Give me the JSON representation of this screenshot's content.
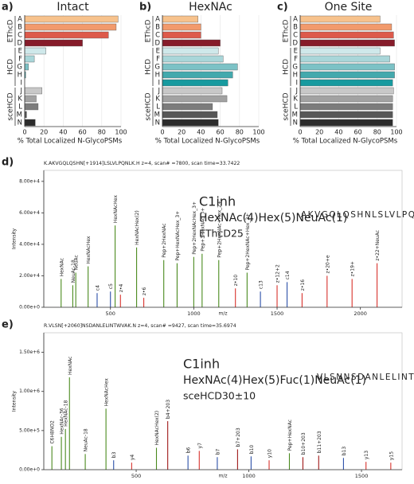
{
  "chart_data": [
    {
      "type": "barh",
      "panel": "a)",
      "title": "Intact",
      "xlabel": "% Total Localized N-GlycoPSMs",
      "xlim": [
        0,
        100
      ],
      "xticks": [
        0,
        20,
        40,
        60,
        80,
        100
      ],
      "groups": [
        {
          "name": "EThcD",
          "categories": [
            "A",
            "B",
            "C",
            "D"
          ],
          "values": [
            97,
            95,
            87,
            60
          ],
          "colors": [
            "#f7c28c",
            "#f29a6c",
            "#dd5a4b",
            "#861c2a"
          ]
        },
        {
          "name": "HCD",
          "categories": [
            "E",
            "F",
            "G",
            "H",
            "I"
          ],
          "values": [
            22,
            10,
            4,
            1,
            0
          ],
          "colors": [
            "#cfe8ea",
            "#a9d6d9",
            "#7cc2c6",
            "#43a9ad",
            "#179a9f"
          ]
        },
        {
          "name": "sceHCD",
          "categories": [
            "J",
            "K",
            "L",
            "M",
            "N"
          ],
          "values": [
            18,
            12,
            14,
            2,
            11
          ],
          "colors": [
            "#c8c8c8",
            "#a2a2a2",
            "#7c7c7c",
            "#575757",
            "#2c2c2c"
          ]
        }
      ]
    },
    {
      "type": "barh",
      "panel": "b)",
      "title": "HexNAc",
      "xlabel": "% Total Localized N-GlycoPSMs",
      "xlim": [
        0,
        100
      ],
      "xticks": [
        0,
        20,
        40,
        60,
        80,
        100
      ],
      "groups": [
        {
          "name": "EThcD",
          "categories": [
            "A",
            "B",
            "C",
            "D"
          ],
          "values": [
            37,
            40,
            40,
            60
          ],
          "colors": [
            "#f7c28c",
            "#f29a6c",
            "#dd5a4b",
            "#861c2a"
          ]
        },
        {
          "name": "HCD",
          "categories": [
            "E",
            "F",
            "G",
            "H",
            "I"
          ],
          "values": [
            58,
            63,
            78,
            73,
            68
          ],
          "colors": [
            "#cfe8ea",
            "#a9d6d9",
            "#7cc2c6",
            "#43a9ad",
            "#179a9f"
          ]
        },
        {
          "name": "sceHCD",
          "categories": [
            "J",
            "K",
            "L",
            "M",
            "N"
          ],
          "values": [
            62,
            67,
            52,
            57,
            58
          ],
          "colors": [
            "#c8c8c8",
            "#a2a2a2",
            "#7c7c7c",
            "#575757",
            "#2c2c2c"
          ]
        }
      ]
    },
    {
      "type": "barh",
      "panel": "c)",
      "title": "One Site",
      "xlabel": "% Total Localized N-GlycoPSMs",
      "xlim": [
        0,
        100
      ],
      "xticks": [
        0,
        20,
        40,
        60,
        80,
        100
      ],
      "groups": [
        {
          "name": "EThcD",
          "categories": [
            "A",
            "B",
            "C",
            "D"
          ],
          "values": [
            83,
            95,
            97,
            98
          ],
          "colors": [
            "#f7c28c",
            "#f29a6c",
            "#dd5a4b",
            "#861c2a"
          ]
        },
        {
          "name": "HCD",
          "categories": [
            "E",
            "F",
            "G",
            "H",
            "I"
          ],
          "values": [
            83,
            93,
            98,
            98,
            96
          ],
          "colors": [
            "#cfe8ea",
            "#a9d6d9",
            "#7cc2c6",
            "#43a9ad",
            "#179a9f"
          ]
        },
        {
          "name": "sceHCD",
          "categories": [
            "J",
            "K",
            "L",
            "M",
            "N"
          ],
          "values": [
            97,
            96,
            96,
            96,
            96
          ],
          "colors": [
            "#c8c8c8",
            "#a2a2a2",
            "#7c7c7c",
            "#575757",
            "#2c2c2c"
          ]
        }
      ]
    },
    {
      "type": "spectrum",
      "panel": "d)",
      "header": "K.AKVGQLQSHN[+1914]LSLVLPQNLK.H z=4, scan# =7800, scan time=33.7422",
      "protein": "C1inh",
      "glycan": "HexNAc(4)Hex(5)NeuAc(1)",
      "method": "EThcD25",
      "method_color": "#e8604c",
      "sequence": "AKVGQLQSHNLSLVLPQNLK",
      "xlabel": "m/z",
      "ylabel": "Intensity",
      "xlim": [
        100,
        2250
      ],
      "xticks": [
        500,
        1000,
        1500,
        2000
      ],
      "ylim": [
        0,
        87000
      ],
      "yticks": [
        {
          "value": 0,
          "label": "0.00e+0"
        },
        {
          "value": 20000,
          "label": "2.00e+4"
        },
        {
          "value": 40000,
          "label": "4.00e+4"
        },
        {
          "value": 60000,
          "label": "6.00e+4"
        },
        {
          "value": 80000,
          "label": "8.00e+4"
        }
      ],
      "x": [
        204,
        274,
        292,
        366,
        420,
        500,
        528,
        560,
        657,
        700,
        820,
        900,
        1000,
        1050,
        1150,
        1250,
        1320,
        1400,
        1500,
        1560,
        1650,
        1800,
        1950,
        2100
      ],
      "values": [
        18000,
        14000,
        22000,
        26000,
        9000,
        10000,
        52000,
        8000,
        38000,
        6000,
        30000,
        28000,
        32000,
        34000,
        30000,
        12000,
        22000,
        10000,
        14000,
        16000,
        9000,
        20000,
        18000,
        28000
      ],
      "peak_labels": [
        "HexNAc",
        "NeuAc-18",
        "NeuAc",
        "HexNAcHex",
        "c4",
        "c5",
        "HexNAcHex",
        "z•4",
        "HexNAcHex(2)",
        "z•6",
        "Pep+2HexNAc",
        "Pep+HexNAcHex_3+",
        "Pep+2HexNAcHex_3+",
        "Pep+3HexNAc_3+",
        "Pep+2HexNAc+Hex_2+",
        "z•10",
        "Pep+2HexNAc+Hex_2+",
        "c13",
        "z•12+2",
        "c14",
        "z•16",
        "z•20+e",
        "z•19+",
        "z•22+NeuAc"
      ],
      "peak_colors": [
        "#4a8a1e",
        "#4a8a1e",
        "#4a8a1e",
        "#4a8a1e",
        "#2a4fa8",
        "#2a4fa8",
        "#4a8a1e",
        "#d8322c",
        "#4a8a1e",
        "#d8322c",
        "#4a8a1e",
        "#4a8a1e",
        "#4a8a1e",
        "#4a8a1e",
        "#4a8a1e",
        "#d8322c",
        "#4a8a1e",
        "#2a4fa8",
        "#d8322c",
        "#2a4fa8",
        "#d8322c",
        "#d8322c",
        "#d8322c",
        "#d8322c"
      ]
    },
    {
      "type": "spectrum",
      "panel": "e)",
      "header": "R.VLSN[+2060]NSDANLELINTWVAK.N z=4, scan# =9427, scan time=35.6974",
      "protein": "C1inh",
      "glycan": "HexNAc(4)Hex(5)Fuc(1)NeuAc(1)",
      "method": "sceHCD30±10",
      "method_color": "#888888",
      "sequence": "VLSNNSDANLELINTWVAK",
      "xlabel": "m/z",
      "ylabel": "Intensity",
      "xlim": [
        90,
        1680
      ],
      "xticks": [
        500,
        1000,
        1500
      ],
      "ylim": [
        0,
        1750000
      ],
      "yticks": [
        {
          "value": 0,
          "label": "0.00e+0"
        },
        {
          "value": 500000,
          "label": "5.00e+5"
        },
        {
          "value": 1000000,
          "label": "1.00e+6"
        },
        {
          "value": 1500000,
          "label": "1.50e+6"
        }
      ],
      "x": [
        126,
        168,
        186,
        204,
        274,
        366,
        400,
        480,
        590,
        640,
        730,
        780,
        860,
        950,
        1010,
        1090,
        1180,
        1240,
        1310,
        1420,
        1520,
        1630
      ],
      "values": [
        300000,
        420000,
        520000,
        1180000,
        200000,
        780000,
        120000,
        90000,
        280000,
        620000,
        180000,
        240000,
        160000,
        260000,
        170000,
        120000,
        210000,
        160000,
        180000,
        150000,
        100000,
        90000
      ],
      "peak_labels": [
        "C6H8NO2",
        "HexNAc-36",
        "HexNAc-18",
        "HexNAc",
        "NeuAc-18",
        "HexNAcHex",
        "b3",
        "y4",
        "HexNAcHex(2)",
        "b4+203",
        "b6",
        "y7",
        "b7",
        "b7+203",
        "b10",
        "y10",
        "Pep+HexNAc",
        "b10+203",
        "b11+203",
        "b13",
        "y13",
        "y15"
      ],
      "peak_colors": [
        "#4a8a1e",
        "#4a8a1e",
        "#4a8a1e",
        "#4a8a1e",
        "#4a8a1e",
        "#4a8a1e",
        "#2a4fa8",
        "#d8322c",
        "#4a8a1e",
        "#a01818",
        "#2a4fa8",
        "#d8322c",
        "#2a4fa8",
        "#a01818",
        "#2a4fa8",
        "#d8322c",
        "#4a8a1e",
        "#a01818",
        "#a01818",
        "#2a4fa8",
        "#d8322c",
        "#d8322c"
      ]
    }
  ]
}
